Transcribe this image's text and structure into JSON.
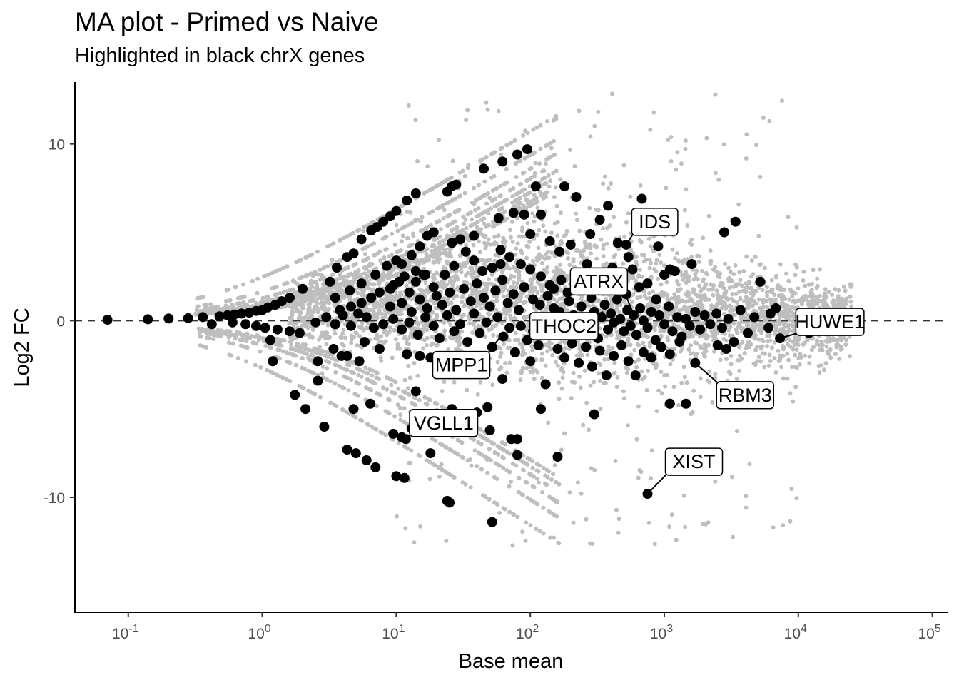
{
  "chart_data": {
    "type": "scatter",
    "title": "MA plot - Primed vs Naive",
    "subtitle": "Highlighted in black chrX genes",
    "xlabel": "Base mean",
    "ylabel": "Log2 FC",
    "x_scale": "log10",
    "xlim": [
      0.04,
      130000
    ],
    "ylim": [
      -16.5,
      13.5
    ],
    "x_ticks": [
      {
        "base": "10",
        "exp": "-1",
        "value": 0.1
      },
      {
        "base": "10",
        "exp": "0",
        "value": 1
      },
      {
        "base": "10",
        "exp": "1",
        "value": 10
      },
      {
        "base": "10",
        "exp": "2",
        "value": 100
      },
      {
        "base": "10",
        "exp": "3",
        "value": 1000
      },
      {
        "base": "10",
        "exp": "4",
        "value": 10000
      },
      {
        "base": "10",
        "exp": "5",
        "value": 100000
      }
    ],
    "y_ticks": [
      {
        "label": "10",
        "value": 10
      },
      {
        "label": "0",
        "value": 0
      },
      {
        "label": "-10",
        "value": -10
      }
    ],
    "reference_line": {
      "y": 0,
      "style": "dashed"
    },
    "colors": {
      "background_genes": "#bebebe",
      "chrX_genes": "#000000",
      "axis": "#000000",
      "tick_text": "#4d4d4d"
    },
    "grid": false,
    "legend": "none",
    "highlight_points": [
      {
        "x": 0.07,
        "y": 0.05
      },
      {
        "x": 0.14,
        "y": 0.08
      },
      {
        "x": 0.2,
        "y": 0.12
      },
      {
        "x": 0.28,
        "y": 0.14
      },
      {
        "x": 0.36,
        "y": 0.2
      },
      {
        "x": 0.42,
        "y": -0.2
      },
      {
        "x": 0.48,
        "y": 0.25
      },
      {
        "x": 0.55,
        "y": 0.3
      },
      {
        "x": 0.62,
        "y": 0.35
      },
      {
        "x": 0.7,
        "y": 0.4
      },
      {
        "x": 0.8,
        "y": 0.45
      },
      {
        "x": 0.9,
        "y": 0.55
      },
      {
        "x": 1.0,
        "y": 0.6
      },
      {
        "x": 1.1,
        "y": 0.75
      },
      {
        "x": 1.25,
        "y": 0.9
      },
      {
        "x": 1.4,
        "y": 1.1
      },
      {
        "x": 1.6,
        "y": 1.3
      },
      {
        "x": 2.0,
        "y": 1.8
      },
      {
        "x": 0.6,
        "y": -0.1
      },
      {
        "x": 0.75,
        "y": -0.2
      },
      {
        "x": 0.9,
        "y": -0.3
      },
      {
        "x": 1.05,
        "y": -0.4
      },
      {
        "x": 1.3,
        "y": -0.5
      },
      {
        "x": 1.6,
        "y": -0.6
      },
      {
        "x": 1.9,
        "y": -0.7
      },
      {
        "x": 1.15,
        "y": -1.1
      },
      {
        "x": 1.2,
        "y": -2.3
      },
      {
        "x": 1.75,
        "y": -4.2
      },
      {
        "x": 2.1,
        "y": -5.0
      },
      {
        "x": 2.6,
        "y": -3.4
      },
      {
        "x": 2.6,
        "y": -2.3
      },
      {
        "x": 2.9,
        "y": -6.0
      },
      {
        "x": 3.2,
        "y": 2.2
      },
      {
        "x": 3.6,
        "y": 3.0
      },
      {
        "x": 4.3,
        "y": 3.6
      },
      {
        "x": 4.8,
        "y": 3.8
      },
      {
        "x": 5.5,
        "y": 4.6
      },
      {
        "x": 6.5,
        "y": 5.1
      },
      {
        "x": 7.2,
        "y": 5.3
      },
      {
        "x": 8.0,
        "y": 5.6
      },
      {
        "x": 9.0,
        "y": 5.9
      },
      {
        "x": 10.0,
        "y": 6.2
      },
      {
        "x": 12.0,
        "y": 6.8
      },
      {
        "x": 14.0,
        "y": 7.2
      },
      {
        "x": 24.0,
        "y": 7.3
      },
      {
        "x": 26.0,
        "y": 7.6
      },
      {
        "x": 28.0,
        "y": 7.7
      },
      {
        "x": 45.0,
        "y": 8.6
      },
      {
        "x": 62.0,
        "y": 9.0
      },
      {
        "x": 80.0,
        "y": 9.4
      },
      {
        "x": 95.0,
        "y": 9.7
      },
      {
        "x": 3.5,
        "y": 1.3
      },
      {
        "x": 4.5,
        "y": 1.7
      },
      {
        "x": 5.5,
        "y": 2.1
      },
      {
        "x": 7.0,
        "y": 2.6
      },
      {
        "x": 8.5,
        "y": 3.1
      },
      {
        "x": 10.0,
        "y": 3.4
      },
      {
        "x": 11.0,
        "y": 3.2
      },
      {
        "x": 13.0,
        "y": 3.7
      },
      {
        "x": 15.0,
        "y": 4.2
      },
      {
        "x": 17.0,
        "y": 4.8
      },
      {
        "x": 19.0,
        "y": 5.0
      },
      {
        "x": 26.0,
        "y": 4.4
      },
      {
        "x": 30.0,
        "y": 4.6
      },
      {
        "x": 38.0,
        "y": 4.8
      },
      {
        "x": 58.0,
        "y": 5.8
      },
      {
        "x": 75.0,
        "y": 6.1
      },
      {
        "x": 90.0,
        "y": 6.0
      },
      {
        "x": 110.0,
        "y": 7.6
      },
      {
        "x": 3.8,
        "y": 0.6
      },
      {
        "x": 4.6,
        "y": 0.8
      },
      {
        "x": 5.5,
        "y": 1.0
      },
      {
        "x": 6.5,
        "y": 1.3
      },
      {
        "x": 7.5,
        "y": 1.6
      },
      {
        "x": 9.5,
        "y": 2.0
      },
      {
        "x": 11.5,
        "y": 2.5
      },
      {
        "x": 14.0,
        "y": 2.8
      },
      {
        "x": 16.0,
        "y": 2.6
      },
      {
        "x": 2.5,
        "y": -0.1
      },
      {
        "x": 3.0,
        "y": 0.2
      },
      {
        "x": 3.5,
        "y": -0.2
      },
      {
        "x": 4.0,
        "y": 0.3
      },
      {
        "x": 4.6,
        "y": -0.3
      },
      {
        "x": 5.2,
        "y": 0.4
      },
      {
        "x": 6.0,
        "y": 0.2
      },
      {
        "x": 6.8,
        "y": -0.4
      },
      {
        "x": 3.4,
        "y": -1.6
      },
      {
        "x": 3.9,
        "y": -2.0
      },
      {
        "x": 4.3,
        "y": -2.0
      },
      {
        "x": 4.8,
        "y": -5.0
      },
      {
        "x": 5.3,
        "y": -2.3
      },
      {
        "x": 5.8,
        "y": -1.2
      },
      {
        "x": 6.4,
        "y": -4.7
      },
      {
        "x": 7.5,
        "y": -1.6
      },
      {
        "x": 4.3,
        "y": -7.3
      },
      {
        "x": 5.0,
        "y": -7.5
      },
      {
        "x": 6.0,
        "y": -7.9
      },
      {
        "x": 7.0,
        "y": -8.3
      },
      {
        "x": 10.0,
        "y": -8.8
      },
      {
        "x": 11.5,
        "y": -8.9
      },
      {
        "x": 24.0,
        "y": -10.2
      },
      {
        "x": 25.0,
        "y": -10.3
      },
      {
        "x": 52.0,
        "y": -11.4
      },
      {
        "x": 9.5,
        "y": -6.4
      },
      {
        "x": 11.0,
        "y": -6.6
      },
      {
        "x": 11.8,
        "y": -6.7
      },
      {
        "x": 13.0,
        "y": -6.1
      },
      {
        "x": 15.0,
        "y": -5.7
      },
      {
        "x": 18.0,
        "y": -7.5
      },
      {
        "x": 22.0,
        "y": -5.3
      },
      {
        "x": 26.0,
        "y": -5.0
      },
      {
        "x": 30.0,
        "y": -5.3
      },
      {
        "x": 40.0,
        "y": -5.2
      },
      {
        "x": 48.0,
        "y": -4.9
      },
      {
        "x": 50.0,
        "y": -6.2
      },
      {
        "x": 72.0,
        "y": -6.7
      },
      {
        "x": 80.0,
        "y": -6.7
      },
      {
        "x": 80.0,
        "y": -7.6
      },
      {
        "x": 120.0,
        "y": -5.0
      },
      {
        "x": 130.0,
        "y": -3.6
      },
      {
        "x": 160.0,
        "y": -7.7
      },
      {
        "x": 300.0,
        "y": -5.3
      },
      {
        "x": 1100.0,
        "y": -4.7
      },
      {
        "x": 14.0,
        "y": -4.0
      },
      {
        "x": 9.0,
        "y": 1.8
      },
      {
        "x": 10.5,
        "y": 2.2
      },
      {
        "x": 12.5,
        "y": 1.6
      },
      {
        "x": 14.0,
        "y": 2.2
      },
      {
        "x": 16.5,
        "y": 2.6
      },
      {
        "x": 19.0,
        "y": 1.9
      },
      {
        "x": 23.0,
        "y": 2.6
      },
      {
        "x": 27.0,
        "y": 3.1
      },
      {
        "x": 33.0,
        "y": 3.9
      },
      {
        "x": 38.0,
        "y": 3.4
      },
      {
        "x": 44.0,
        "y": 2.8
      },
      {
        "x": 52.0,
        "y": 3.0
      },
      {
        "x": 60.0,
        "y": 4.0
      },
      {
        "x": 70.0,
        "y": 3.6
      },
      {
        "x": 85.0,
        "y": 3.2
      },
      {
        "x": 100.0,
        "y": 2.9
      },
      {
        "x": 120.0,
        "y": 2.5
      },
      {
        "x": 140.0,
        "y": 2.0
      },
      {
        "x": 9.0,
        "y": 0.8
      },
      {
        "x": 11.0,
        "y": 1.0
      },
      {
        "x": 13.0,
        "y": 0.5
      },
      {
        "x": 15.0,
        "y": 1.2
      },
      {
        "x": 17.0,
        "y": 0.7
      },
      {
        "x": 20.0,
        "y": 1.4
      },
      {
        "x": 22.0,
        "y": 0.9
      },
      {
        "x": 25.0,
        "y": 1.6
      },
      {
        "x": 28.0,
        "y": 0.6
      },
      {
        "x": 32.0,
        "y": 1.8
      },
      {
        "x": 36.0,
        "y": 1.1
      },
      {
        "x": 40.0,
        "y": 2.1
      },
      {
        "x": 45.0,
        "y": 1.3
      },
      {
        "x": 50.0,
        "y": 0.8
      },
      {
        "x": 55.0,
        "y": 1.7
      },
      {
        "x": 62.0,
        "y": 2.3
      },
      {
        "x": 68.0,
        "y": 1.0
      },
      {
        "x": 75.0,
        "y": 1.5
      },
      {
        "x": 82.0,
        "y": 0.6
      },
      {
        "x": 90.0,
        "y": 1.9
      },
      {
        "x": 105.0,
        "y": 1.2
      },
      {
        "x": 118.0,
        "y": 0.9
      },
      {
        "x": 135.0,
        "y": 1.4
      },
      {
        "x": 150.0,
        "y": 0.7
      },
      {
        "x": 8.0,
        "y": -0.2
      },
      {
        "x": 9.5,
        "y": 0.1
      },
      {
        "x": 11.0,
        "y": -0.5
      },
      {
        "x": 12.5,
        "y": -0.1
      },
      {
        "x": 14.5,
        "y": -0.8
      },
      {
        "x": 16.5,
        "y": 0.2
      },
      {
        "x": 19.0,
        "y": -0.3
      },
      {
        "x": 21.0,
        "y": -1.0
      },
      {
        "x": 24.0,
        "y": 0.3
      },
      {
        "x": 27.0,
        "y": -0.6
      },
      {
        "x": 30.0,
        "y": -0.2
      },
      {
        "x": 34.0,
        "y": -1.2
      },
      {
        "x": 38.0,
        "y": 0.4
      },
      {
        "x": 42.0,
        "y": -0.7
      },
      {
        "x": 47.0,
        "y": -0.1
      },
      {
        "x": 52.0,
        "y": -1.5
      },
      {
        "x": 57.0,
        "y": 0.2
      },
      {
        "x": 63.0,
        "y": -0.9
      },
      {
        "x": 70.0,
        "y": -0.4
      },
      {
        "x": 77.0,
        "y": -1.8
      },
      {
        "x": 85.0,
        "y": -0.3
      },
      {
        "x": 95.0,
        "y": -1.1
      },
      {
        "x": 105.0,
        "y": -0.6
      },
      {
        "x": 115.0,
        "y": -1.4
      },
      {
        "x": 128.0,
        "y": -0.2
      },
      {
        "x": 140.0,
        "y": -0.8
      },
      {
        "x": 12.0,
        "y": -1.9
      },
      {
        "x": 15.0,
        "y": -2.0
      },
      {
        "x": 18.0,
        "y": -2.1
      },
      {
        "x": 28.0,
        "y": -2.6
      },
      {
        "x": 35.0,
        "y": -2.2
      },
      {
        "x": 45.0,
        "y": -2.4
      },
      {
        "x": 62.0,
        "y": -3.3
      },
      {
        "x": 100.0,
        "y": -2.3
      },
      {
        "x": 150.0,
        "y": 0.1
      },
      {
        "x": 165.0,
        "y": 0.5
      },
      {
        "x": 180.0,
        "y": -0.4
      },
      {
        "x": 195.0,
        "y": 1.1
      },
      {
        "x": 210.0,
        "y": 0.3
      },
      {
        "x": 225.0,
        "y": -0.7
      },
      {
        "x": 240.0,
        "y": 0.8
      },
      {
        "x": 255.0,
        "y": 0.0
      },
      {
        "x": 270.0,
        "y": -0.2
      },
      {
        "x": 285.0,
        "y": 1.3
      },
      {
        "x": 300.0,
        "y": 0.5
      },
      {
        "x": 320.0,
        "y": -1.0
      },
      {
        "x": 340.0,
        "y": 0.2
      },
      {
        "x": 360.0,
        "y": 0.9
      },
      {
        "x": 380.0,
        "y": -0.5
      },
      {
        "x": 400.0,
        "y": 0.4
      },
      {
        "x": 420.0,
        "y": -0.1
      },
      {
        "x": 445.0,
        "y": 1.2
      },
      {
        "x": 470.0,
        "y": 0.1
      },
      {
        "x": 500.0,
        "y": -0.6
      },
      {
        "x": 530.0,
        "y": 0.6
      },
      {
        "x": 560.0,
        "y": -0.3
      },
      {
        "x": 590.0,
        "y": 0.3
      },
      {
        "x": 620.0,
        "y": -0.8
      },
      {
        "x": 660.0,
        "y": 0.7
      },
      {
        "x": 700.0,
        "y": 0.0
      },
      {
        "x": 750.0,
        "y": -0.4
      },
      {
        "x": 800.0,
        "y": 0.5
      },
      {
        "x": 860.0,
        "y": -1.1
      },
      {
        "x": 920.0,
        "y": 0.3
      },
      {
        "x": 1000.0,
        "y": -0.2
      },
      {
        "x": 1080.0,
        "y": 0.8
      },
      {
        "x": 1150.0,
        "y": -0.6
      },
      {
        "x": 1250.0,
        "y": 0.2
      },
      {
        "x": 1350.0,
        "y": -0.9
      },
      {
        "x": 1450.0,
        "y": 0.1
      },
      {
        "x": 1550.0,
        "y": -0.3
      },
      {
        "x": 1700.0,
        "y": 0.5
      },
      {
        "x": 1850.0,
        "y": -0.5
      },
      {
        "x": 2000.0,
        "y": 0.3
      },
      {
        "x": 2200.0,
        "y": -0.2
      },
      {
        "x": 2450.0,
        "y": 0.4
      },
      {
        "x": 2700.0,
        "y": -0.4
      },
      {
        "x": 3000.0,
        "y": 0.1
      },
      {
        "x": 3300.0,
        "y": -1.2
      },
      {
        "x": 3700.0,
        "y": 0.6
      },
      {
        "x": 4200.0,
        "y": -0.7
      },
      {
        "x": 4700.0,
        "y": 0.2
      },
      {
        "x": 150.0,
        "y": 1.8
      },
      {
        "x": 170.0,
        "y": 2.3
      },
      {
        "x": 190.0,
        "y": 1.6
      },
      {
        "x": 215.0,
        "y": 2.6
      },
      {
        "x": 240.0,
        "y": 1.9
      },
      {
        "x": 265.0,
        "y": 3.2
      },
      {
        "x": 300.0,
        "y": 2.2
      },
      {
        "x": 330.0,
        "y": 2.7
      },
      {
        "x": 370.0,
        "y": 1.7
      },
      {
        "x": 410.0,
        "y": 3.0
      },
      {
        "x": 460.0,
        "y": 2.4
      },
      {
        "x": 520.0,
        "y": 1.5
      },
      {
        "x": 580.0,
        "y": 2.9
      },
      {
        "x": 650.0,
        "y": 1.9
      },
      {
        "x": 750.0,
        "y": 2.1
      },
      {
        "x": 870.0,
        "y": 1.2
      },
      {
        "x": 1000.0,
        "y": 2.6
      },
      {
        "x": 1200.0,
        "y": 2.8
      },
      {
        "x": 1600.0,
        "y": 3.2
      },
      {
        "x": 160.0,
        "y": -1.6
      },
      {
        "x": 180.0,
        "y": -2.1
      },
      {
        "x": 205.0,
        "y": -1.3
      },
      {
        "x": 230.0,
        "y": -2.4
      },
      {
        "x": 260.0,
        "y": -1.5
      },
      {
        "x": 290.0,
        "y": -2.6
      },
      {
        "x": 330.0,
        "y": -1.7
      },
      {
        "x": 370.0,
        "y": -3.1
      },
      {
        "x": 420.0,
        "y": -2.0
      },
      {
        "x": 480.0,
        "y": -1.4
      },
      {
        "x": 540.0,
        "y": -2.3
      },
      {
        "x": 610.0,
        "y": -3.1
      },
      {
        "x": 700.0,
        "y": -1.8
      },
      {
        "x": 800.0,
        "y": -2.1
      },
      {
        "x": 950.0,
        "y": -1.5
      },
      {
        "x": 1100.0,
        "y": -1.9
      },
      {
        "x": 1300.0,
        "y": -1.2
      },
      {
        "x": 2500.0,
        "y": -1.4
      },
      {
        "x": 2900.0,
        "y": -1.6
      },
      {
        "x": 140.0,
        "y": 4.5
      },
      {
        "x": 165.0,
        "y": 3.9
      },
      {
        "x": 180.0,
        "y": 7.6
      },
      {
        "x": 200.0,
        "y": 4.3
      },
      {
        "x": 220.0,
        "y": 7.0
      },
      {
        "x": 280.0,
        "y": 4.9
      },
      {
        "x": 330.0,
        "y": 5.7
      },
      {
        "x": 380.0,
        "y": 6.5
      },
      {
        "x": 450.0,
        "y": 4.4
      },
      {
        "x": 540.0,
        "y": 3.6
      },
      {
        "x": 680.0,
        "y": 6.9
      },
      {
        "x": 900.0,
        "y": 4.2
      },
      {
        "x": 1100.0,
        "y": 2.9
      },
      {
        "x": 2800.0,
        "y": 5.0
      },
      {
        "x": 3400.0,
        "y": 5.6
      },
      {
        "x": 5200.0,
        "y": 2.2
      },
      {
        "x": 6200.0,
        "y": 0.4
      },
      {
        "x": 6800.0,
        "y": 0.7
      },
      {
        "x": 6000.0,
        "y": -0.4
      },
      {
        "x": 12000.0,
        "y": -0.7
      },
      {
        "x": 13000.0,
        "y": -0.3
      },
      {
        "x": 120.0,
        "y": 6.0
      },
      {
        "x": 100.0,
        "y": 4.9
      },
      {
        "x": 60.0,
        "y": 3.2
      },
      {
        "x": 520.0,
        "y": 4.3
      },
      {
        "x": 1700.0,
        "y": -2.4
      },
      {
        "x": 7300.0,
        "y": -1.0
      },
      {
        "x": 750.0,
        "y": -9.8
      },
      {
        "x": 1450.0,
        "y": -4.7
      },
      {
        "x": 1100.0,
        "y": -4.7
      }
    ],
    "labels": [
      {
        "text": "IDS",
        "x": 520,
        "y": 4.3
      },
      {
        "text": "ATRX",
        "x": 600,
        "y": 0.2
      },
      {
        "text": "HUWE1",
        "x": 7300,
        "y": -1.0
      },
      {
        "text": "THOC2",
        "x": 350,
        "y": 0.5
      },
      {
        "text": "MPP1",
        "x": 60,
        "y": -0.9
      },
      {
        "text": "RBM3",
        "x": 1700,
        "y": -2.4
      },
      {
        "text": "VGLL1",
        "x": 11.5,
        "y": -6.6
      },
      {
        "text": "XIST",
        "x": 750,
        "y": -9.8
      }
    ]
  }
}
